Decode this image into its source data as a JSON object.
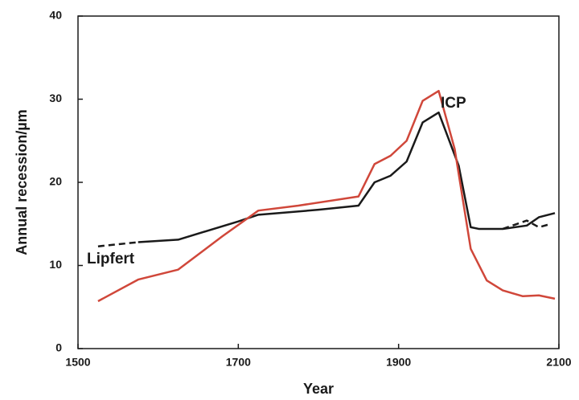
{
  "chart_data": {
    "type": "line",
    "xlabel": "Year",
    "ylabel": "Annual recession/µm",
    "xlim": [
      1500,
      2100
    ],
    "xticks": [
      1500,
      1700,
      1900,
      2100
    ],
    "ylim": [
      0,
      40
    ],
    "yticks": [
      0,
      10,
      20,
      30,
      40
    ],
    "annotations": [
      "Lipfert",
      "ICP"
    ],
    "series": [
      {
        "name": "Lipfert",
        "color": "#1a1a1a",
        "x": [
          1575,
          1625,
          1700,
          1725,
          1800,
          1850,
          1870,
          1890,
          1910,
          1930,
          1950,
          1975,
          1990,
          2000,
          2030,
          2060,
          2075,
          2095
        ],
        "values": [
          12.8,
          13.1,
          15.3,
          16.1,
          16.7,
          17.2,
          20,
          20.8,
          22.5,
          27.2,
          28.4,
          22,
          14.6,
          14.4,
          14.4,
          14.8,
          15.8,
          16.3
        ]
      },
      {
        "color": "#1a1a1a",
        "dashed": true,
        "x": [
          1525,
          1575
        ],
        "values": [
          12.3,
          12.8
        ]
      },
      {
        "color": "#1a1a1a",
        "dashed": true,
        "x": [
          2030,
          2060,
          2075,
          2090
        ],
        "values": [
          14.4,
          15.4,
          14.6,
          15.0
        ]
      },
      {
        "name": "ICP",
        "color": "#d0473a",
        "x": [
          1525,
          1575,
          1625,
          1680,
          1725,
          1775,
          1850,
          1870,
          1890,
          1910,
          1930,
          1950,
          1970,
          1990,
          2010,
          2030,
          2055,
          2075,
          2095
        ],
        "values": [
          5.7,
          8.3,
          9.5,
          13.5,
          16.6,
          17.2,
          18.3,
          22.2,
          23.2,
          25,
          29.8,
          31,
          24,
          12,
          8.2,
          7,
          6.3,
          6.4,
          6
        ]
      }
    ]
  }
}
